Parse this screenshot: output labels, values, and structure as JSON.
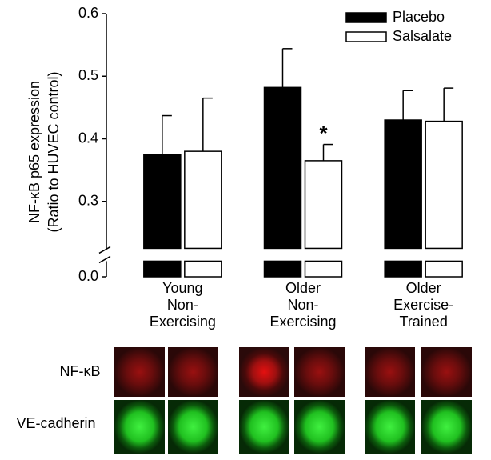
{
  "chart_data": {
    "type": "bar",
    "ylabel": "NF-κB p65 expression",
    "ylabel2": "(Ratio to HUVEC control)",
    "categories": [
      "Young\nNon-\nExercising",
      "Older\nNon-\nExercising",
      "Older\nExercise-\nTrained"
    ],
    "series": [
      {
        "name": "Placebo",
        "color": "#000000",
        "values": [
          0.375,
          0.482,
          0.43
        ],
        "errors": [
          0.062,
          0.062,
          0.047
        ]
      },
      {
        "name": "Salsalate",
        "color": "#ffffff",
        "values": [
          0.38,
          0.365,
          0.428
        ],
        "errors": [
          0.085,
          0.026,
          0.053
        ]
      }
    ],
    "annotations": [
      {
        "text": "*",
        "series": 1,
        "category": 1
      }
    ],
    "ylim": [
      0,
      0.6
    ],
    "ybreak": [
      0.025,
      0.225
    ],
    "yticks": [
      {
        "value": 0,
        "label": "0.0"
      },
      0.3,
      0.4,
      0.5,
      0.6
    ],
    "legend": "top-right"
  },
  "image_panel": {
    "rows": [
      "NF-κB",
      "VE-cadherin"
    ]
  }
}
